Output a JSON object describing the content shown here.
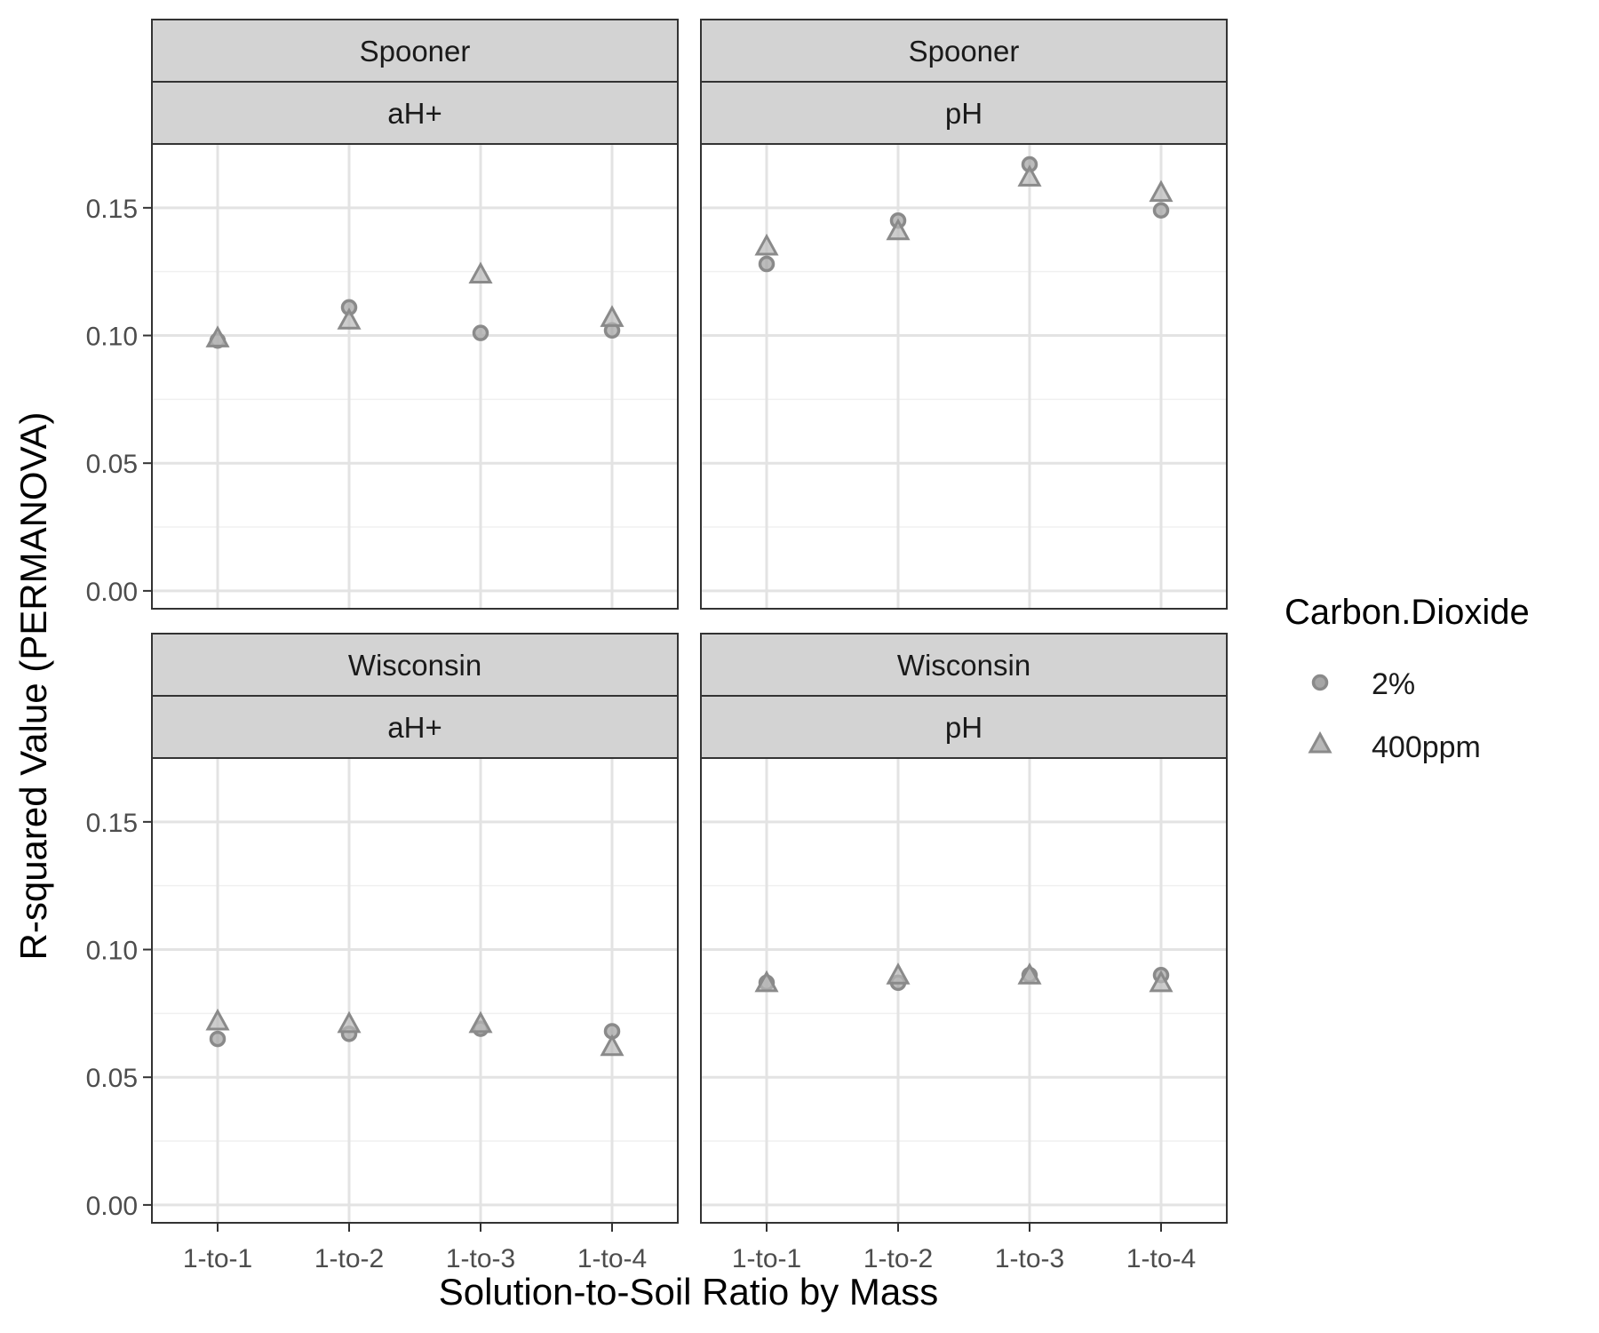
{
  "chart_data": {
    "type": "scatter",
    "facet_rows": [
      "Spooner",
      "Wisconsin"
    ],
    "facet_cols": [
      "aH+",
      "pH"
    ],
    "xlabel": "Solution-to-Soil Ratio by Mass",
    "ylabel": "R-squared Value (PERMANOVA)",
    "categories": [
      "1-to-1",
      "1-to-2",
      "1-to-3",
      "1-to-4"
    ],
    "ylim": [
      -0.007,
      0.175
    ],
    "yticks": [
      "0.00",
      "0.05",
      "0.10",
      "0.15"
    ],
    "grid": true,
    "legend": {
      "title": "Carbon.Dioxide",
      "position": "right",
      "items": [
        {
          "label": "2%",
          "shape": "circle"
        },
        {
          "label": "400ppm",
          "shape": "triangle"
        }
      ]
    },
    "point_color": "#8a8a8a",
    "strip_color": "#d3d3d3",
    "panels": [
      {
        "row": "Spooner",
        "col": "aH+",
        "series": [
          {
            "name": "2%",
            "values": [
              0.098,
              0.111,
              0.101,
              0.102
            ]
          },
          {
            "name": "400ppm",
            "values": [
              0.099,
              0.106,
              0.124,
              0.107
            ]
          }
        ]
      },
      {
        "row": "Spooner",
        "col": "pH",
        "series": [
          {
            "name": "2%",
            "values": [
              0.128,
              0.145,
              0.167,
              0.149
            ]
          },
          {
            "name": "400ppm",
            "values": [
              0.135,
              0.141,
              0.162,
              0.156
            ]
          }
        ]
      },
      {
        "row": "Wisconsin",
        "col": "aH+",
        "series": [
          {
            "name": "2%",
            "values": [
              0.065,
              0.067,
              0.069,
              0.068
            ]
          },
          {
            "name": "400ppm",
            "values": [
              0.072,
              0.071,
              0.071,
              0.062
            ]
          }
        ]
      },
      {
        "row": "Wisconsin",
        "col": "pH",
        "series": [
          {
            "name": "2%",
            "values": [
              0.087,
              0.087,
              0.09,
              0.09
            ]
          },
          {
            "name": "400ppm",
            "values": [
              0.087,
              0.09,
              0.09,
              0.087
            ]
          }
        ]
      }
    ]
  }
}
